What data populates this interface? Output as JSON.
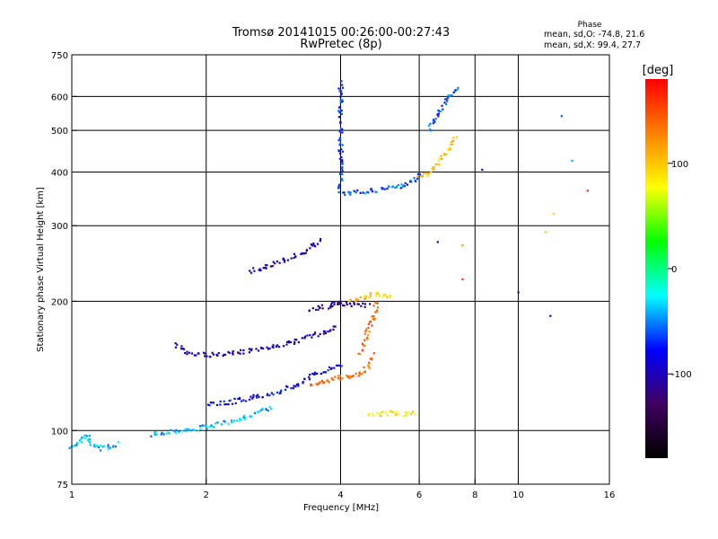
{
  "chart_data": {
    "type": "scatter",
    "title": "Tromsø 20141015 00:26:00-00:27:43",
    "subtitle": "RwPretec (8p)",
    "xlabel": "Frequency [MHz]",
    "ylabel": "Stationary phase Virtual Height [km]",
    "x_scale": "log",
    "y_scale": "log",
    "xlim": [
      1,
      16
    ],
    "ylim": [
      75,
      750
    ],
    "x_ticks": [
      1,
      2,
      4,
      6,
      8,
      10,
      16
    ],
    "y_ticks": [
      75,
      100,
      200,
      300,
      400,
      500,
      600,
      750
    ],
    "grid": true,
    "phase_box": {
      "title": "Phase",
      "line_o": "mean, sd,O: -74.8, 21.6",
      "line_x": "mean, sd,X:  99.4, 27.7"
    },
    "colorbar": {
      "label": "[deg]",
      "range": [
        -180,
        180
      ],
      "ticks": [
        100,
        0,
        -100
      ],
      "colors": [
        "#000000",
        "#400060",
        "#0000ff",
        "#00ffff",
        "#00ff00",
        "#ffff00",
        "#ff8000",
        "#ff0000"
      ]
    },
    "traces": [
      {
        "x": [
          1.0,
          1.02,
          1.05,
          1.08,
          1.1,
          1.13,
          1.17,
          1.22,
          1.27
        ],
        "y": [
          92,
          93,
          95,
          97,
          94,
          92,
          91,
          92,
          93
        ],
        "phase": -40
      },
      {
        "x": [
          1.5,
          1.6,
          1.7,
          1.8,
          1.9,
          2.0,
          2.2,
          2.4,
          2.6,
          2.8
        ],
        "y": [
          98,
          99,
          100,
          100,
          101,
          102,
          104,
          107,
          110,
          113
        ],
        "phase": -40
      },
      {
        "x": [
          2.0,
          2.2,
          2.4,
          2.6,
          2.9,
          3.2,
          3.5,
          3.8,
          4.0
        ],
        "y": [
          115,
          116,
          118,
          120,
          123,
          128,
          135,
          140,
          143
        ],
        "phase": -80
      },
      {
        "x": [
          1.7,
          1.8,
          2.0,
          2.2,
          2.5,
          2.8,
          3.1,
          3.4,
          3.7,
          3.9
        ],
        "y": [
          160,
          152,
          150,
          151,
          153,
          157,
          160,
          165,
          170,
          175
        ],
        "phase": -100
      },
      {
        "x": [
          3.4,
          3.6,
          3.8,
          3.9,
          4.0,
          4.2,
          4.4,
          4.6
        ],
        "y": [
          190,
          193,
          195,
          197,
          198,
          197,
          196,
          195
        ],
        "phase": -110
      },
      {
        "x": [
          2.5,
          2.7,
          3.0,
          3.3,
          3.5,
          3.6
        ],
        "y": [
          235,
          240,
          250,
          260,
          270,
          280
        ],
        "phase": -100
      },
      {
        "x": [
          3.4,
          3.6,
          3.8,
          4.0,
          4.2,
          4.4,
          4.6,
          4.7
        ],
        "y": [
          127,
          129,
          131,
          133,
          134,
          136,
          140,
          150
        ],
        "phase": 140
      },
      {
        "x": [
          4.4,
          4.5,
          4.6,
          4.7,
          4.8,
          4.8
        ],
        "y": [
          150,
          160,
          170,
          180,
          190,
          200
        ],
        "phase": 140
      },
      {
        "x": [
          4.2,
          4.4,
          4.6,
          4.8,
          5.0,
          5.2
        ],
        "y": [
          200,
          203,
          206,
          208,
          206,
          205
        ],
        "phase": 100
      },
      {
        "x": [
          4.0,
          4.2,
          4.4,
          4.7,
          5.0,
          5.3,
          5.6,
          5.9,
          6.0
        ],
        "y": [
          355,
          357,
          360,
          362,
          365,
          368,
          375,
          385,
          400
        ],
        "phase": -60
      },
      {
        "x": [
          6.0,
          6.2,
          6.4,
          6.6,
          6.8,
          7.0,
          7.2
        ],
        "y": [
          390,
          395,
          405,
          420,
          440,
          460,
          480
        ],
        "phase": 100
      },
      {
        "x": [
          4.0,
          4.0,
          4.0,
          4.0,
          4.0,
          4.0,
          4.0
        ],
        "y": [
          360,
          400,
          450,
          500,
          560,
          620,
          650
        ],
        "phase": -70
      },
      {
        "x": [
          6.3,
          6.5,
          6.7,
          6.9,
          7.1,
          7.3
        ],
        "y": [
          500,
          530,
          560,
          590,
          610,
          630
        ],
        "phase": -60
      },
      {
        "x": [
          4.6,
          4.9,
          5.2,
          5.6,
          5.9
        ],
        "y": [
          108,
          109,
          110,
          109,
          110
        ],
        "phase": 90
      }
    ],
    "scatter": {
      "x": [
        12.5,
        14.3,
        13.2,
        10.0,
        11.8,
        7.5,
        8.3,
        7.5,
        6.6,
        12.0,
        11.5
      ],
      "y": [
        540,
        362,
        425,
        210,
        185,
        225,
        405,
        270,
        275,
        320,
        290
      ],
      "phase": [
        -60,
        160,
        -40,
        -110,
        -100,
        160,
        -80,
        120,
        -100,
        90,
        100
      ]
    }
  }
}
